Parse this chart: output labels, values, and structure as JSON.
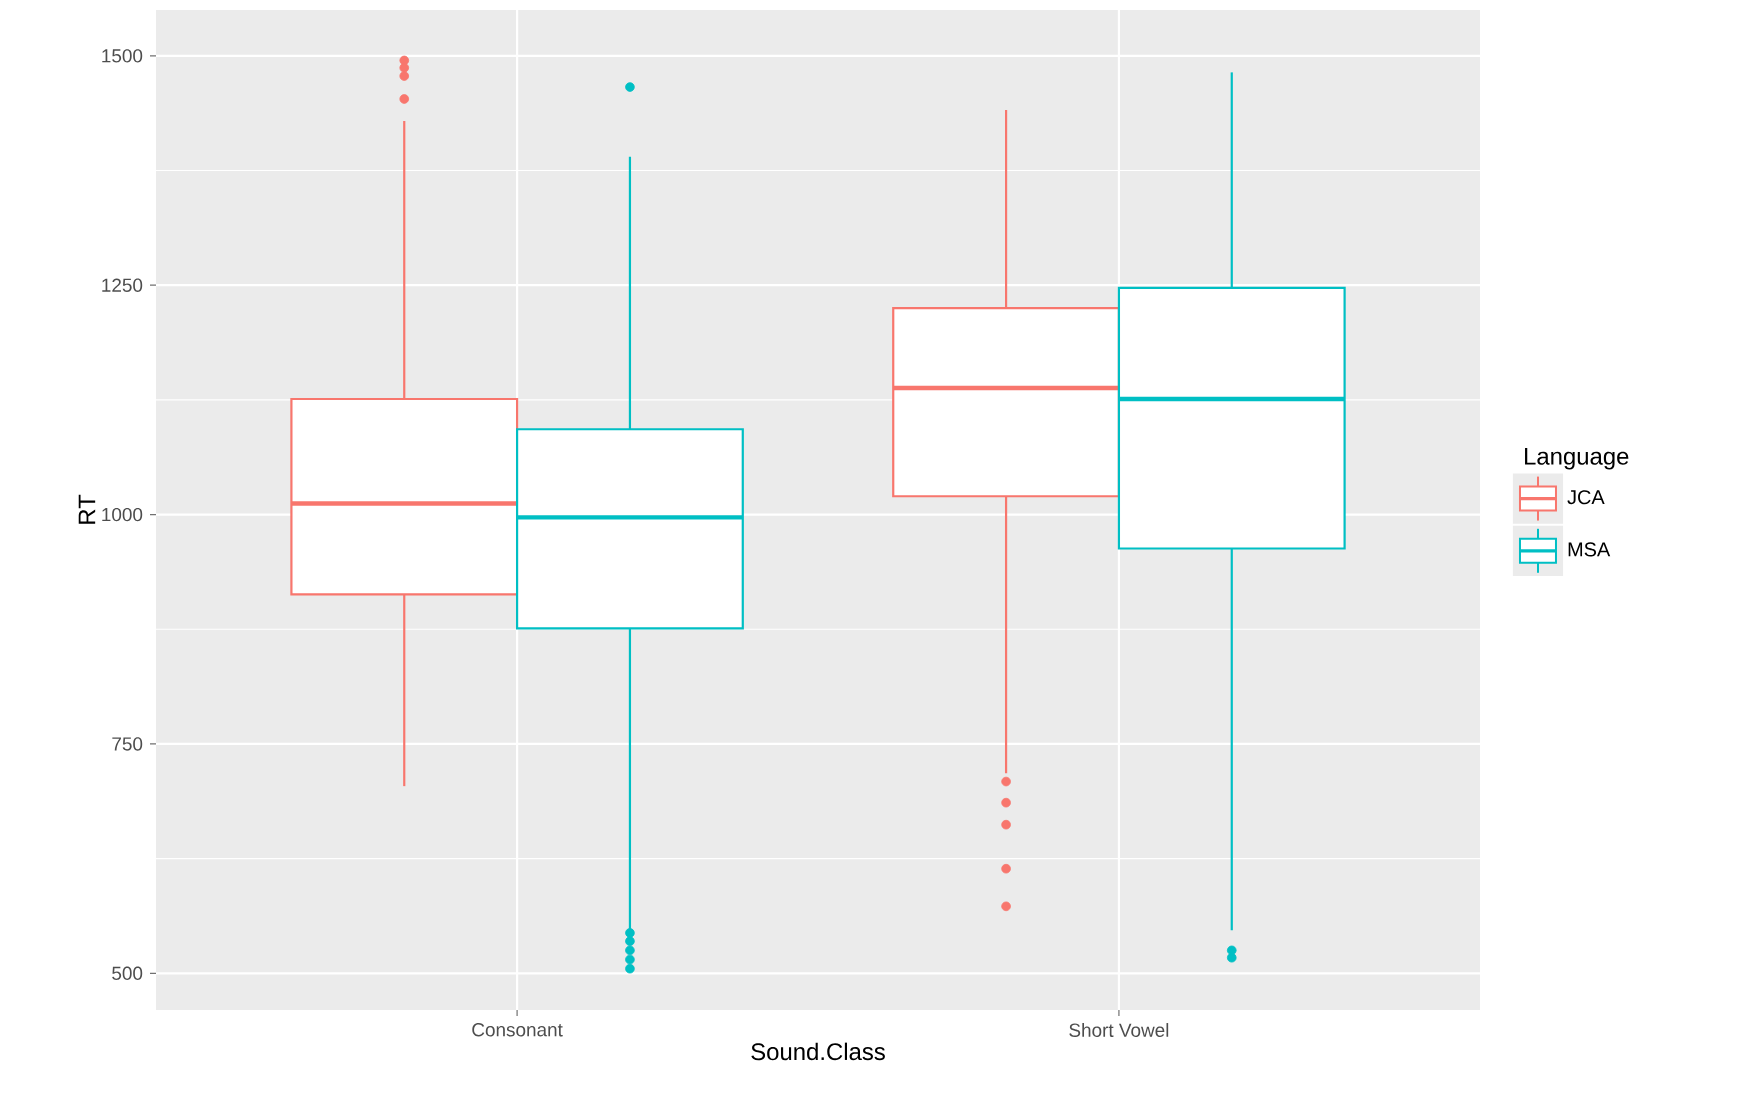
{
  "chart_data": {
    "type": "box",
    "xlabel": "Sound.Class",
    "ylabel": "RT",
    "legend_title": "Language",
    "categories": [
      "Consonant",
      "Short Vowel"
    ],
    "series": [
      {
        "name": "JCA",
        "color": "#f8766d",
        "boxes": [
          {
            "low": 704,
            "q1": 913,
            "median": 1012,
            "q3": 1126,
            "high": 1429,
            "outliers": [
              1495,
              1487,
              1478,
              1453
            ]
          },
          {
            "low": 718,
            "q1": 1020,
            "median": 1138,
            "q3": 1225,
            "high": 1441,
            "outliers": [
              709,
              686,
              662,
              614,
              573
            ]
          }
        ]
      },
      {
        "name": "MSA",
        "color": "#00bfc4",
        "boxes": [
          {
            "low": 547,
            "q1": 876,
            "median": 997,
            "q3": 1093,
            "high": 1390,
            "outliers": [
              1466,
              544,
              535,
              525,
              515,
              505
            ]
          },
          {
            "low": 547,
            "q1": 963,
            "median": 1126,
            "q3": 1247,
            "high": 1482,
            "outliers": [
              525,
              517
            ]
          }
        ]
      }
    ],
    "ylim": [
      460,
      1550
    ],
    "yticks": [
      500,
      750,
      1000,
      1250,
      1500
    ],
    "grid": true,
    "legend": "right",
    "marker": "circle"
  }
}
